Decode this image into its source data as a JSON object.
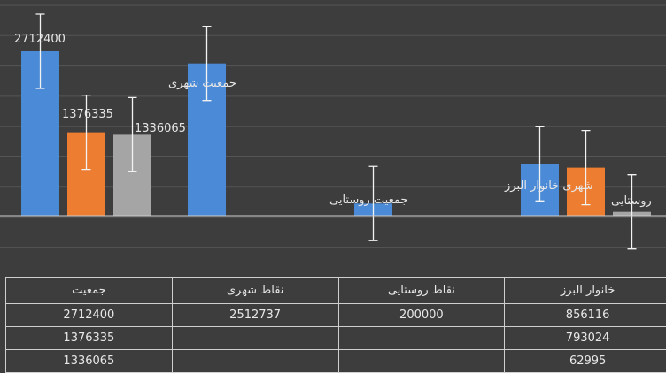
{
  "colors": {
    "background": "#3d3d3d",
    "grid": "#555555",
    "axis": "#d0d0d0",
    "blue": "#4a8ad6",
    "orange": "#ed7d31",
    "gray": "#a5a5a5"
  },
  "chart_data": {
    "type": "bar",
    "categories": [
      "جمعیت",
      "نقاط شهری",
      "نقاط روستایی",
      "خانوار البرز"
    ],
    "series": [
      {
        "values": [
          2712400,
          2512737,
          200000,
          856116
        ],
        "color": "#4a8ad6"
      },
      {
        "values": [
          1376335,
          null,
          null,
          793024
        ],
        "color": "#ed7d31"
      },
      {
        "values": [
          1336065,
          null,
          null,
          62995
        ],
        "color": "#a5a5a5"
      }
    ],
    "data_labels": [
      {
        "text": "2712400",
        "series": 0,
        "category": 0
      },
      {
        "text": "1376335",
        "series": 1,
        "category": 0
      },
      {
        "text": "1336065",
        "series": 2,
        "category": 0
      },
      {
        "text": "جمعیت شهری",
        "series": 0,
        "category": 1
      },
      {
        "text": "جمعیت روستایی",
        "series": 0,
        "category": 2
      },
      {
        "text": "شهری خانوار البرز",
        "series": 0,
        "category": 3
      },
      {
        "text": "روستایی",
        "series": 2,
        "category": 3
      }
    ],
    "error_bars": true,
    "grid": true,
    "legend": "none",
    "xlabel": "",
    "ylabel": ""
  },
  "table": {
    "headers": [
      "جمعیت",
      "نقاط شهری",
      "نقاط روستایی",
      "خانوار البرز"
    ],
    "rows": [
      [
        "2712400",
        "2512737",
        "200000",
        "856116"
      ],
      [
        "1376335",
        "",
        "",
        "793024"
      ],
      [
        "1336065",
        "",
        "",
        "62995"
      ]
    ]
  }
}
